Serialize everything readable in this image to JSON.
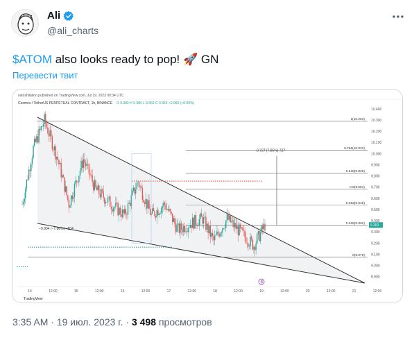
{
  "author": {
    "display_name": "Ali",
    "handle": "@ali_charts"
  },
  "tweet": {
    "cashtag": "$ATOM",
    "text": " also looks ready to pop! 🚀 GN",
    "translate_label": "Перевести твит"
  },
  "meta": {
    "time": "3:35 AM",
    "separator": "·",
    "date": "19 июл. 2023 г.",
    "views_count": "3 498",
    "views_label": "просмотров"
  },
  "icons": {
    "verified": "verified-badge-icon",
    "more": "more-dots-icon",
    "avatar": "avatar-image"
  },
  "colors": {
    "accent": "#1d9bf0",
    "up_candle": "#26a69a",
    "down_candle": "#ef5350",
    "wedge_fill": "#eceff1"
  },
  "chart_data": {
    "type": "candlestick",
    "header_publish": "satoshilatino published on TradingView.com, Jul 19, 2023 00:34 UTC",
    "header_symbol": "Cosmos / TetherUS PERPETUAL CONTRACT, 1h, BINANCE",
    "header_ohlc": "O 9.382  H 9.384  L 9.363  C 9.363  +0.060 (+0.65%)",
    "x_ticks": [
      "14",
      "12:00",
      "15",
      "12:00",
      "16",
      "12:00",
      "17",
      "12:00",
      "18",
      "12:00",
      "19",
      "12:00",
      "20",
      "12:00",
      "21",
      "12:00"
    ],
    "y_ticks": [
      10.4,
      10.3,
      10.2,
      10.1,
      10.0,
      9.9,
      9.8,
      9.7,
      9.6,
      9.5,
      9.4,
      9.3,
      9.2,
      9.1,
      9.0,
      8.9
    ],
    "ylim": [
      8.85,
      10.45
    ],
    "fib_levels": [
      {
        "label": "1(10.293)",
        "value": 10.293
      },
      {
        "label": "0.786(10.032)",
        "value": 10.032
      },
      {
        "label": "0.618(9.828)",
        "value": 9.828
      },
      {
        "label": "0.5(9.684)",
        "value": 9.684
      },
      {
        "label": "0.382(9.540)",
        "value": 9.54
      },
      {
        "label": "0.236(9.362)",
        "value": 9.362
      },
      {
        "label": "0(9.075)",
        "value": 9.075
      }
    ],
    "price_badge": "9.363",
    "annotation_target": "0.727 (7.85%) 727",
    "annotation_drop": "−0.804 (−7.86%) −804",
    "tradingview_label": "TradingView"
  }
}
